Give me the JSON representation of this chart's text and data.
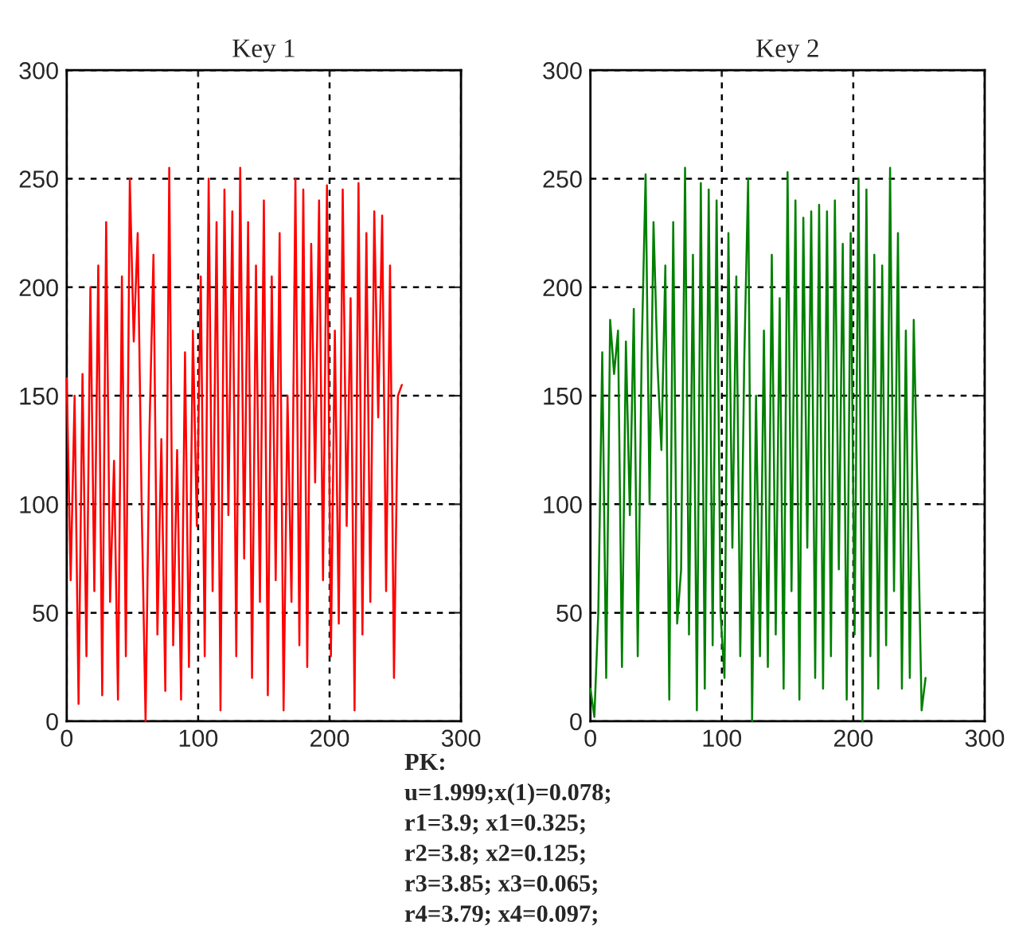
{
  "chart_data": [
    {
      "type": "line",
      "title": "Key 1",
      "x": [
        0,
        3,
        6,
        9,
        12,
        15,
        18,
        21,
        24,
        27,
        30,
        33,
        36,
        39,
        42,
        45,
        48,
        51,
        54,
        57,
        60,
        63,
        66,
        69,
        72,
        75,
        78,
        81,
        84,
        87,
        90,
        93,
        96,
        99,
        102,
        105,
        108,
        111,
        114,
        117,
        120,
        123,
        126,
        129,
        132,
        135,
        138,
        141,
        144,
        147,
        150,
        153,
        156,
        159,
        162,
        165,
        168,
        171,
        174,
        177,
        180,
        183,
        186,
        189,
        192,
        195,
        198,
        201,
        204,
        207,
        210,
        213,
        216,
        219,
        222,
        225,
        228,
        231,
        234,
        237,
        240,
        243,
        246,
        249,
        252,
        255
      ],
      "series": [
        {
          "color": "#ff0000",
          "values": [
            158,
            65,
            150,
            8,
            160,
            30,
            200,
            60,
            210,
            12,
            230,
            55,
            120,
            10,
            205,
            30,
            250,
            175,
            225,
            100,
            0,
            135,
            215,
            40,
            130,
            14,
            255,
            35,
            125,
            10,
            170,
            25,
            180,
            90,
            205,
            30,
            250,
            60,
            230,
            5,
            245,
            95,
            235,
            30,
            255,
            75,
            230,
            20,
            210,
            55,
            240,
            12,
            205,
            65,
            225,
            5,
            150,
            55,
            250,
            35,
            245,
            25,
            220,
            110,
            240,
            65,
            247,
            30,
            180,
            45,
            245,
            90,
            195,
            5,
            248,
            40,
            225,
            55,
            235,
            140,
            233,
            60,
            210,
            20,
            150,
            155
          ]
        }
      ],
      "xlim": [
        0,
        300
      ],
      "ylim": [
        0,
        300
      ],
      "xticks": [
        0,
        100,
        200,
        300
      ],
      "yticks": [
        0,
        50,
        100,
        150,
        200,
        250,
        300
      ],
      "grid": true,
      "line_style": "solid",
      "marker": "none",
      "annotations": [
        "PK:",
        "u=1.999;x(1)=0.078;",
        "r1=3.9; x1=0.325;",
        "r2=3.8; x2=0.125;",
        "r3=3.85; x3=0.065;",
        "r4=3.79; x4=0.097;"
      ]
    },
    {
      "type": "line",
      "title": "Key 2",
      "x": [
        0,
        3,
        6,
        9,
        12,
        15,
        18,
        21,
        24,
        27,
        30,
        33,
        36,
        39,
        42,
        45,
        48,
        51,
        54,
        57,
        60,
        63,
        66,
        69,
        72,
        75,
        78,
        81,
        84,
        87,
        90,
        93,
        96,
        99,
        102,
        105,
        108,
        111,
        114,
        117,
        120,
        123,
        126,
        129,
        132,
        135,
        138,
        141,
        144,
        147,
        150,
        153,
        156,
        159,
        162,
        165,
        168,
        171,
        174,
        177,
        180,
        183,
        186,
        189,
        192,
        195,
        198,
        201,
        204,
        207,
        210,
        213,
        216,
        219,
        222,
        225,
        228,
        231,
        234,
        237,
        240,
        243,
        246,
        249,
        252,
        255
      ],
      "series": [
        {
          "color": "#008000",
          "values": [
            15,
            2,
            50,
            170,
            20,
            185,
            160,
            180,
            25,
            175,
            95,
            190,
            30,
            170,
            252,
            100,
            230,
            165,
            125,
            210,
            10,
            230,
            45,
            70,
            255,
            40,
            215,
            5,
            248,
            15,
            245,
            35,
            240,
            50,
            20,
            225,
            80,
            205,
            30,
            165,
            250,
            0,
            150,
            30,
            180,
            25,
            215,
            40,
            195,
            15,
            253,
            60,
            240,
            10,
            232,
            80,
            235,
            20,
            238,
            15,
            235,
            30,
            240,
            70,
            220,
            10,
            225,
            40,
            250,
            0,
            245,
            30,
            215,
            15,
            210,
            35,
            255,
            60,
            225,
            15,
            180,
            20,
            185,
            100,
            5,
            20
          ]
        }
      ],
      "xlim": [
        0,
        300
      ],
      "ylim": [
        0,
        300
      ],
      "xticks": [
        0,
        100,
        200,
        300
      ],
      "yticks": [
        0,
        50,
        100,
        150,
        200,
        250,
        300
      ],
      "grid": true,
      "line_style": "solid",
      "marker": "none"
    }
  ]
}
